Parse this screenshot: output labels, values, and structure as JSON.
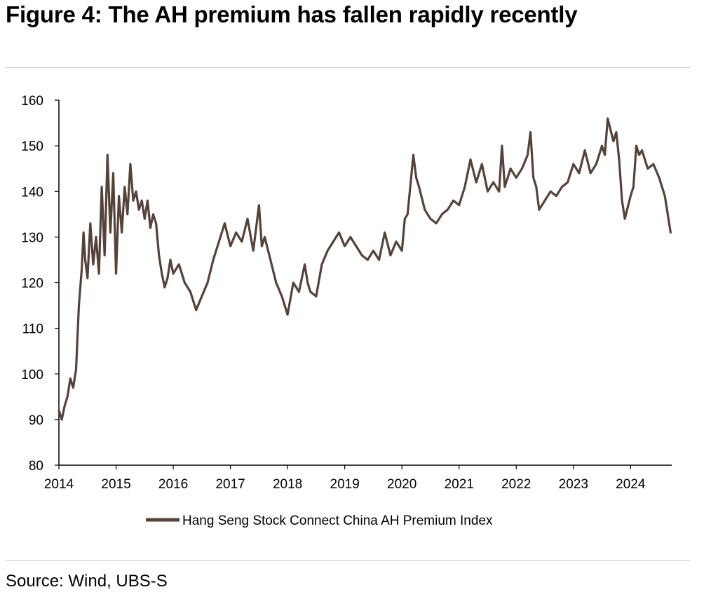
{
  "header": {
    "title": "Figure 4: The AH premium has fallen rapidly recently"
  },
  "footer": {
    "source": "Source: Wind, UBS-S"
  },
  "colors": {
    "series": "#54433a",
    "axis": "#000000",
    "rule": "#c8c8c8"
  },
  "chart_data": {
    "type": "line",
    "title": "Figure 4: The AH premium has fallen rapidly recently",
    "xlabel": "",
    "ylabel": "",
    "xlim": [
      2014,
      2024.72
    ],
    "ylim": [
      80,
      160
    ],
    "yticks": [
      80,
      90,
      100,
      110,
      120,
      130,
      140,
      150,
      160
    ],
    "xticks": [
      2014,
      2015,
      2016,
      2017,
      2018,
      2019,
      2020,
      2021,
      2022,
      2023,
      2024
    ],
    "grid": false,
    "legend": "bottom-center",
    "series": [
      {
        "name": "Hang Seng Stock Connect China AH Premium Index",
        "x": [
          2014.0,
          2014.05,
          2014.1,
          2014.15,
          2014.2,
          2014.25,
          2014.3,
          2014.35,
          2014.4,
          2014.43,
          2014.46,
          2014.5,
          2014.55,
          2014.6,
          2014.65,
          2014.7,
          2014.75,
          2014.8,
          2014.85,
          2014.9,
          2014.95,
          2015.0,
          2015.05,
          2015.1,
          2015.15,
          2015.2,
          2015.25,
          2015.3,
          2015.35,
          2015.4,
          2015.45,
          2015.5,
          2015.55,
          2015.6,
          2015.65,
          2015.7,
          2015.75,
          2015.8,
          2015.85,
          2015.9,
          2015.95,
          2016.0,
          2016.1,
          2016.2,
          2016.3,
          2016.4,
          2016.5,
          2016.6,
          2016.7,
          2016.8,
          2016.9,
          2017.0,
          2017.1,
          2017.2,
          2017.3,
          2017.4,
          2017.5,
          2017.55,
          2017.6,
          2017.7,
          2017.8,
          2017.9,
          2018.0,
          2018.1,
          2018.2,
          2018.3,
          2018.35,
          2018.4,
          2018.5,
          2018.6,
          2018.7,
          2018.8,
          2018.9,
          2019.0,
          2019.1,
          2019.2,
          2019.3,
          2019.4,
          2019.5,
          2019.6,
          2019.7,
          2019.8,
          2019.9,
          2020.0,
          2020.05,
          2020.1,
          2020.2,
          2020.25,
          2020.3,
          2020.4,
          2020.5,
          2020.6,
          2020.7,
          2020.8,
          2020.9,
          2021.0,
          2021.1,
          2021.2,
          2021.3,
          2021.4,
          2021.5,
          2021.6,
          2021.7,
          2021.75,
          2021.8,
          2021.9,
          2022.0,
          2022.1,
          2022.2,
          2022.25,
          2022.3,
          2022.35,
          2022.4,
          2022.5,
          2022.6,
          2022.7,
          2022.8,
          2022.9,
          2023.0,
          2023.1,
          2023.2,
          2023.3,
          2023.4,
          2023.5,
          2023.55,
          2023.6,
          2023.7,
          2023.75,
          2023.8,
          2023.85,
          2023.9,
          2024.0,
          2024.05,
          2024.1,
          2024.15,
          2024.2,
          2024.3,
          2024.4,
          2024.5,
          2024.6,
          2024.65,
          2024.7
        ],
        "values": [
          92,
          90,
          93,
          95,
          99,
          97,
          101,
          115,
          123,
          131,
          125,
          121,
          133,
          124,
          130,
          122,
          141,
          126,
          148,
          131,
          144,
          122,
          139,
          131,
          141,
          135,
          146,
          138,
          140,
          136,
          138,
          134,
          138,
          132,
          135,
          133,
          126,
          122,
          119,
          121,
          125,
          122,
          124,
          120,
          118,
          114,
          117,
          120,
          125,
          129,
          133,
          128,
          131,
          129,
          134,
          127,
          137,
          128,
          130,
          125,
          120,
          117,
          113,
          120,
          118,
          124,
          120,
          118,
          117,
          124,
          127,
          129,
          131,
          128,
          130,
          128,
          126,
          125,
          127,
          125,
          131,
          126,
          129,
          127,
          134,
          135,
          148,
          143,
          141,
          136,
          134,
          133,
          135,
          136,
          138,
          137,
          141,
          147,
          142,
          146,
          140,
          142,
          140,
          150,
          141,
          145,
          143,
          145,
          148,
          153,
          143,
          141,
          136,
          138,
          140,
          139,
          141,
          142,
          146,
          144,
          149,
          144,
          146,
          150,
          148,
          156,
          151,
          153,
          147,
          138,
          134,
          139,
          141,
          150,
          148,
          149,
          145,
          146,
          143,
          139,
          135,
          131
        ]
      }
    ]
  }
}
